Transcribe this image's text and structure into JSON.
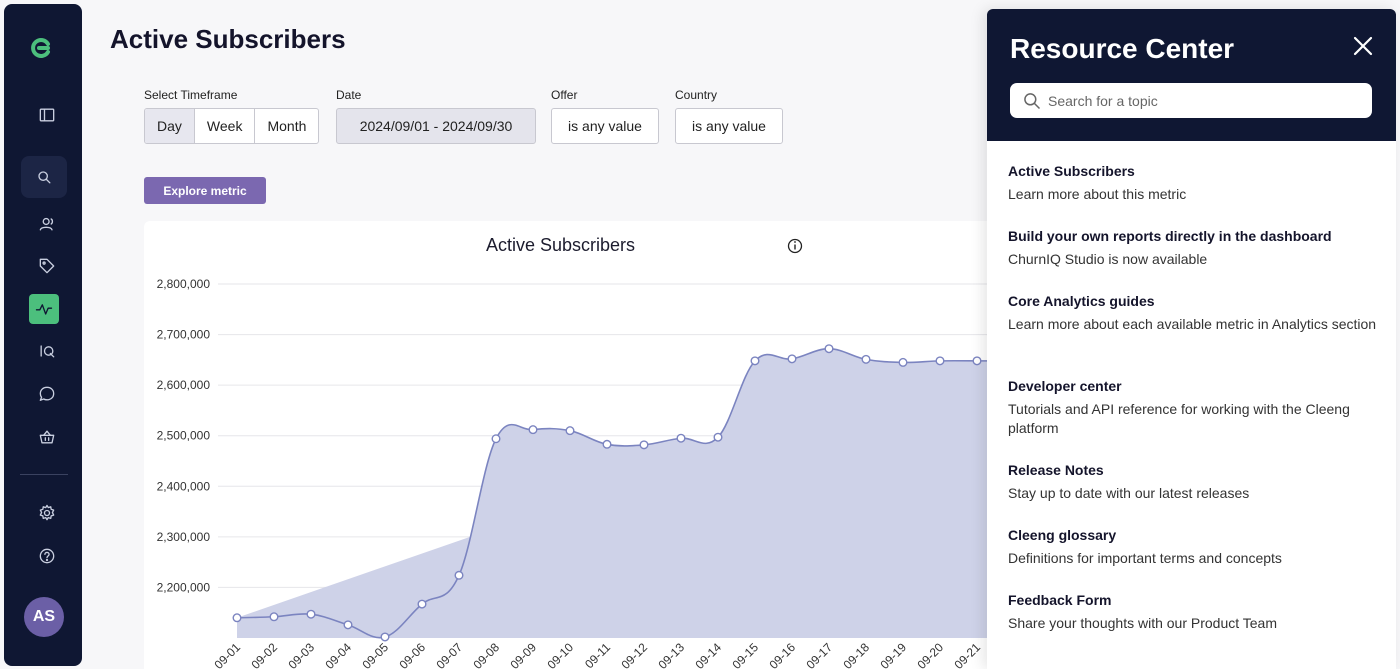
{
  "page": {
    "title": "Active Subscribers"
  },
  "sidebar": {
    "avatar_initials": "AS",
    "icons": [
      "logo-icon",
      "panel-toggle-icon",
      "search-icon",
      "users-icon",
      "tag-icon",
      "activity-icon",
      "iq-icon",
      "chat-icon",
      "basket-icon",
      "gear-icon",
      "help-icon"
    ]
  },
  "filters": {
    "timeframe_label": "Select Timeframe",
    "timeframe_options": [
      "Day",
      "Week",
      "Month"
    ],
    "timeframe_selected": "Day",
    "date_label": "Date",
    "date_value": "2024/09/01 - 2024/09/30",
    "offer_label": "Offer",
    "offer_value": "is any value",
    "country_label": "Country",
    "country_value": "is any value",
    "explore_label": "Explore metric"
  },
  "chart_data": {
    "type": "area",
    "title": "Active Subscribers",
    "x": [
      "2024-09-01",
      "2024-09-02",
      "2024-09-03",
      "2024-09-04",
      "2024-09-05",
      "2024-09-06",
      "2024-09-07",
      "2024-09-08",
      "2024-09-09",
      "2024-09-10",
      "2024-09-11",
      "2024-09-12",
      "2024-09-13",
      "2024-09-14",
      "2024-09-15",
      "2024-09-16",
      "2024-09-17",
      "2024-09-18",
      "2024-09-19",
      "2024-09-20",
      "2024-09-21"
    ],
    "x_tick_labels": [
      "09-01",
      "09-02",
      "09-03",
      "09-04",
      "09-05",
      "09-06",
      "09-07",
      "09-08",
      "09-09",
      "09-10",
      "09-11",
      "09-12",
      "09-13",
      "09-14",
      "09-15",
      "09-16",
      "09-17",
      "09-18",
      "09-19",
      "09-20",
      "09-21"
    ],
    "values": [
      2140000,
      2142000,
      2147000,
      2126000,
      2102000,
      2167000,
      2224000,
      2494000,
      2512000,
      2510000,
      2483000,
      2482000,
      2495000,
      2497000,
      2648000,
      2652000,
      2672000,
      2651000,
      2645000,
      2648000,
      2648000
    ],
    "yticks": [
      "2,200,000",
      "2,300,000",
      "2,400,000",
      "2,500,000",
      "2,600,000",
      "2,700,000",
      "2,800,000"
    ],
    "ylim": [
      2100000,
      2800000
    ],
    "color": "#7b84c0",
    "fill": "#ced2e8",
    "grid": true
  },
  "resource_center": {
    "title": "Resource Center",
    "search_placeholder": "Search for a topic",
    "items": [
      {
        "title": "Active Subscribers",
        "desc": "Learn more about this metric"
      },
      {
        "title": "Build your own reports directly in the dashboard",
        "desc": "ChurnIQ Studio is now available"
      },
      {
        "title": "Core Analytics guides",
        "desc": "Learn more about each available metric in Analytics section"
      },
      {
        "title": "Developer center",
        "desc": "Tutorials and API reference for working with the Cleeng platform"
      },
      {
        "title": "Release Notes",
        "desc": "Stay up to date with our latest releases"
      },
      {
        "title": "Cleeng glossary",
        "desc": "Definitions for important terms and concepts"
      },
      {
        "title": "Feedback Form",
        "desc": "Share your thoughts with our Product Team"
      }
    ]
  }
}
